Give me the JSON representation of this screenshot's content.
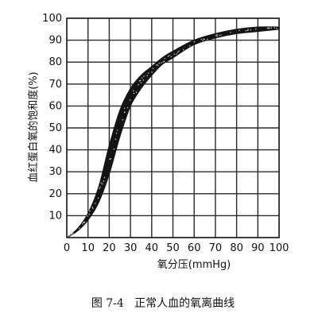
{
  "chart_data": {
    "type": "area",
    "caption": "图 7-4   正常人血的氧离曲线",
    "xlabel": "氧分压(mmHg)",
    "ylabel": "血红蛋白氧的饱和度(%)",
    "xlim": [
      0,
      100
    ],
    "ylim": [
      0,
      100
    ],
    "xticks": [
      "0",
      "10",
      "20",
      "30",
      "40",
      "50",
      "60",
      "70",
      "80",
      "90",
      "100"
    ],
    "yticks": [
      "10",
      "20",
      "30",
      "40",
      "50",
      "60",
      "70",
      "80",
      "90",
      "100"
    ],
    "grid": true,
    "series": [
      {
        "role": "lower",
        "x": [
          0,
          5,
          10,
          15,
          20,
          25,
          30,
          35,
          40,
          45,
          50,
          60,
          70,
          80,
          90,
          100
        ],
        "y": [
          0,
          3,
          8,
          16,
          29,
          46,
          60,
          68,
          74,
          79,
          82,
          88,
          91,
          93,
          94,
          95
        ]
      },
      {
        "role": "upper",
        "x": [
          0,
          5,
          10,
          15,
          20,
          25,
          30,
          35,
          40,
          45,
          50,
          60,
          70,
          80,
          90,
          100
        ],
        "y": [
          0,
          4,
          11,
          23,
          42,
          58,
          68,
          74,
          78,
          82,
          85,
          90,
          93,
          95,
          96,
          96
        ]
      }
    ],
    "colors": {
      "band": "#141414",
      "grid": "#2a2a2a",
      "background": "#ffffff"
    }
  }
}
